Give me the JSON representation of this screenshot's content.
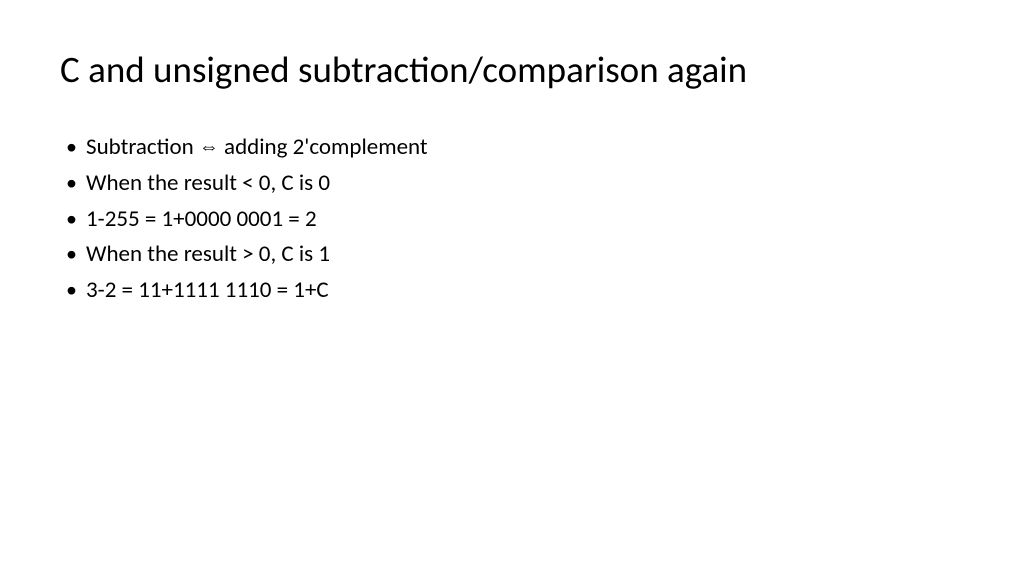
{
  "title": "C and unsigned subtraction/comparison again",
  "bullets": [
    {
      "pre": "Subtraction ",
      "arrow": "⇔",
      "post": " adding 2'complement"
    },
    {
      "pre": "When the result < 0, C is 0",
      "arrow": "",
      "post": ""
    },
    {
      "pre": "1-255 = 1+0000 0001 = 2",
      "arrow": "",
      "post": ""
    },
    {
      "pre": "When the result > 0, C is 1",
      "arrow": "",
      "post": ""
    },
    {
      "pre": "3-2 = 11+1111 1110 = 1+C",
      "arrow": "",
      "post": ""
    }
  ],
  "colors": {
    "background": "#ffffff",
    "text": "#000000"
  },
  "typography": {
    "title_fontsize": 37,
    "bullet_fontsize": 23,
    "font_family": "Calibri"
  }
}
